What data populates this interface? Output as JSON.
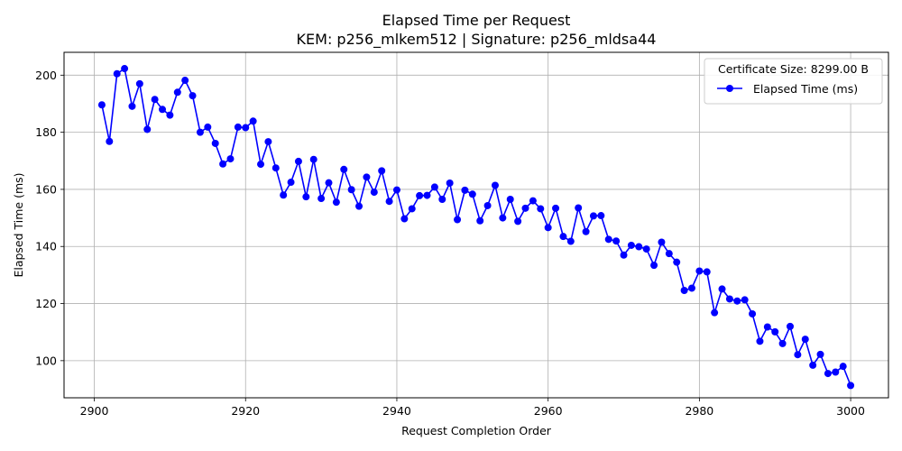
{
  "chart_data": {
    "type": "line",
    "title": "Elapsed Time per Request",
    "subtitle": "KEM: p256_mlkem512 | Signature: p256_mldsa44",
    "xlabel": "Request Completion Order",
    "ylabel": "Elapsed Time (ms)",
    "xlim": [
      2896,
      3005
    ],
    "ylim": [
      87,
      208
    ],
    "xticks": [
      2900,
      2920,
      2940,
      2960,
      2980,
      3000
    ],
    "yticks": [
      100,
      120,
      140,
      160,
      180,
      200
    ],
    "grid": true,
    "legend": {
      "title": "Certificate Size: 8299.00 B",
      "position": "top-right"
    },
    "series": [
      {
        "name": "Elapsed Time (ms)",
        "color": "#0000ff",
        "marker": "circle",
        "x": [
          2901,
          2902,
          2903,
          2904,
          2905,
          2906,
          2907,
          2908,
          2909,
          2910,
          2911,
          2912,
          2913,
          2914,
          2915,
          2916,
          2917,
          2918,
          2919,
          2920,
          2921,
          2922,
          2923,
          2924,
          2925,
          2926,
          2927,
          2928,
          2929,
          2930,
          2931,
          2932,
          2933,
          2934,
          2935,
          2936,
          2937,
          2938,
          2939,
          2940,
          2941,
          2942,
          2943,
          2944,
          2945,
          2946,
          2947,
          2948,
          2949,
          2950,
          2951,
          2952,
          2953,
          2954,
          2955,
          2956,
          2957,
          2958,
          2959,
          2960,
          2961,
          2962,
          2963,
          2964,
          2965,
          2966,
          2967,
          2968,
          2969,
          2970,
          2971,
          2972,
          2973,
          2974,
          2975,
          2976,
          2977,
          2978,
          2979,
          2980,
          2981,
          2982,
          2983,
          2984,
          2985,
          2986,
          2987,
          2988,
          2989,
          2990,
          2991,
          2992,
          2993,
          2994,
          2995,
          2996,
          2997,
          2998,
          2999,
          3000
        ],
        "y": [
          189.6,
          176.8,
          200.5,
          202.3,
          189.1,
          197.0,
          181.0,
          191.5,
          188.0,
          186.0,
          194.0,
          198.2,
          192.8,
          180.0,
          181.8,
          176.1,
          168.9,
          170.7,
          181.8,
          181.6,
          183.9,
          168.8,
          176.7,
          167.5,
          158.0,
          162.5,
          169.8,
          157.4,
          170.5,
          156.8,
          162.3,
          155.5,
          167.0,
          159.9,
          154.1,
          164.3,
          159.0,
          166.5,
          155.8,
          159.8,
          149.7,
          153.2,
          157.8,
          157.9,
          160.8,
          156.5,
          162.2,
          149.4,
          159.7,
          158.3,
          149.0,
          154.3,
          161.4,
          150.0,
          156.5,
          148.8,
          153.4,
          156.0,
          153.2,
          146.6,
          153.4,
          143.5,
          141.8,
          153.5,
          145.2,
          150.7,
          150.8,
          142.5,
          141.9,
          137.0,
          140.4,
          139.9,
          139.1,
          133.4,
          141.5,
          137.5,
          134.5,
          124.6,
          125.4,
          131.4,
          131.1,
          116.8,
          125.1,
          121.6,
          120.9,
          121.3,
          116.4,
          106.8,
          111.8,
          110.1,
          106.0,
          112.0,
          102.1,
          107.5,
          98.4,
          102.2,
          95.5,
          96.0,
          98.0,
          91.3
        ]
      }
    ]
  }
}
